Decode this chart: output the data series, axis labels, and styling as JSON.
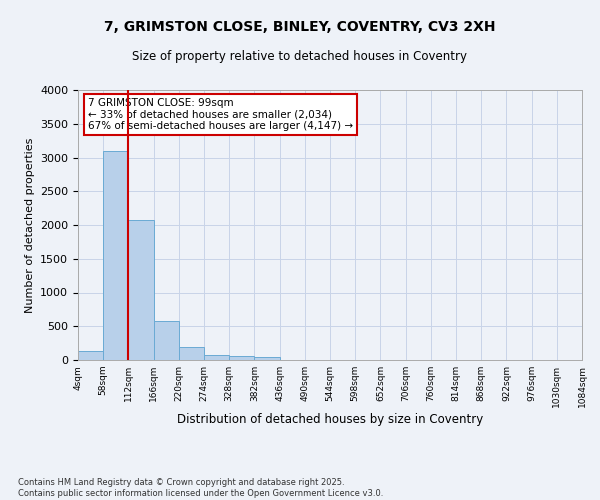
{
  "title_line1": "7, GRIMSTON CLOSE, BINLEY, COVENTRY, CV3 2XH",
  "title_line2": "Size of property relative to detached houses in Coventry",
  "xlabel": "Distribution of detached houses by size in Coventry",
  "ylabel": "Number of detached properties",
  "footnote": "Contains HM Land Registry data © Crown copyright and database right 2025.\nContains public sector information licensed under the Open Government Licence v3.0.",
  "annotation_line1": "7 GRIMSTON CLOSE: 99sqm",
  "annotation_line2": "← 33% of detached houses are smaller (2,034)",
  "annotation_line3": "67% of semi-detached houses are larger (4,147) →",
  "bar_values": [
    130,
    3100,
    2080,
    575,
    200,
    80,
    55,
    45,
    0,
    0,
    0,
    0,
    0,
    0,
    0,
    0,
    0,
    0,
    0,
    0
  ],
  "bin_labels": [
    "4sqm",
    "58sqm",
    "112sqm",
    "166sqm",
    "220sqm",
    "274sqm",
    "328sqm",
    "382sqm",
    "436sqm",
    "490sqm",
    "544sqm",
    "598sqm",
    "652sqm",
    "706sqm",
    "760sqm",
    "814sqm",
    "868sqm",
    "922sqm",
    "976sqm",
    "1030sqm",
    "1084sqm"
  ],
  "bar_color": "#b8d0ea",
  "bar_edge_color": "#6aaad4",
  "vline_color": "#cc0000",
  "annotation_box_color": "#cc0000",
  "annotation_fill": "white",
  "ylim": [
    0,
    4000
  ],
  "yticks": [
    0,
    500,
    1000,
    1500,
    2000,
    2500,
    3000,
    3500,
    4000
  ],
  "grid_color": "#c8d4e8",
  "bg_color": "#eef2f8",
  "plot_bg_color": "#eef2f8"
}
